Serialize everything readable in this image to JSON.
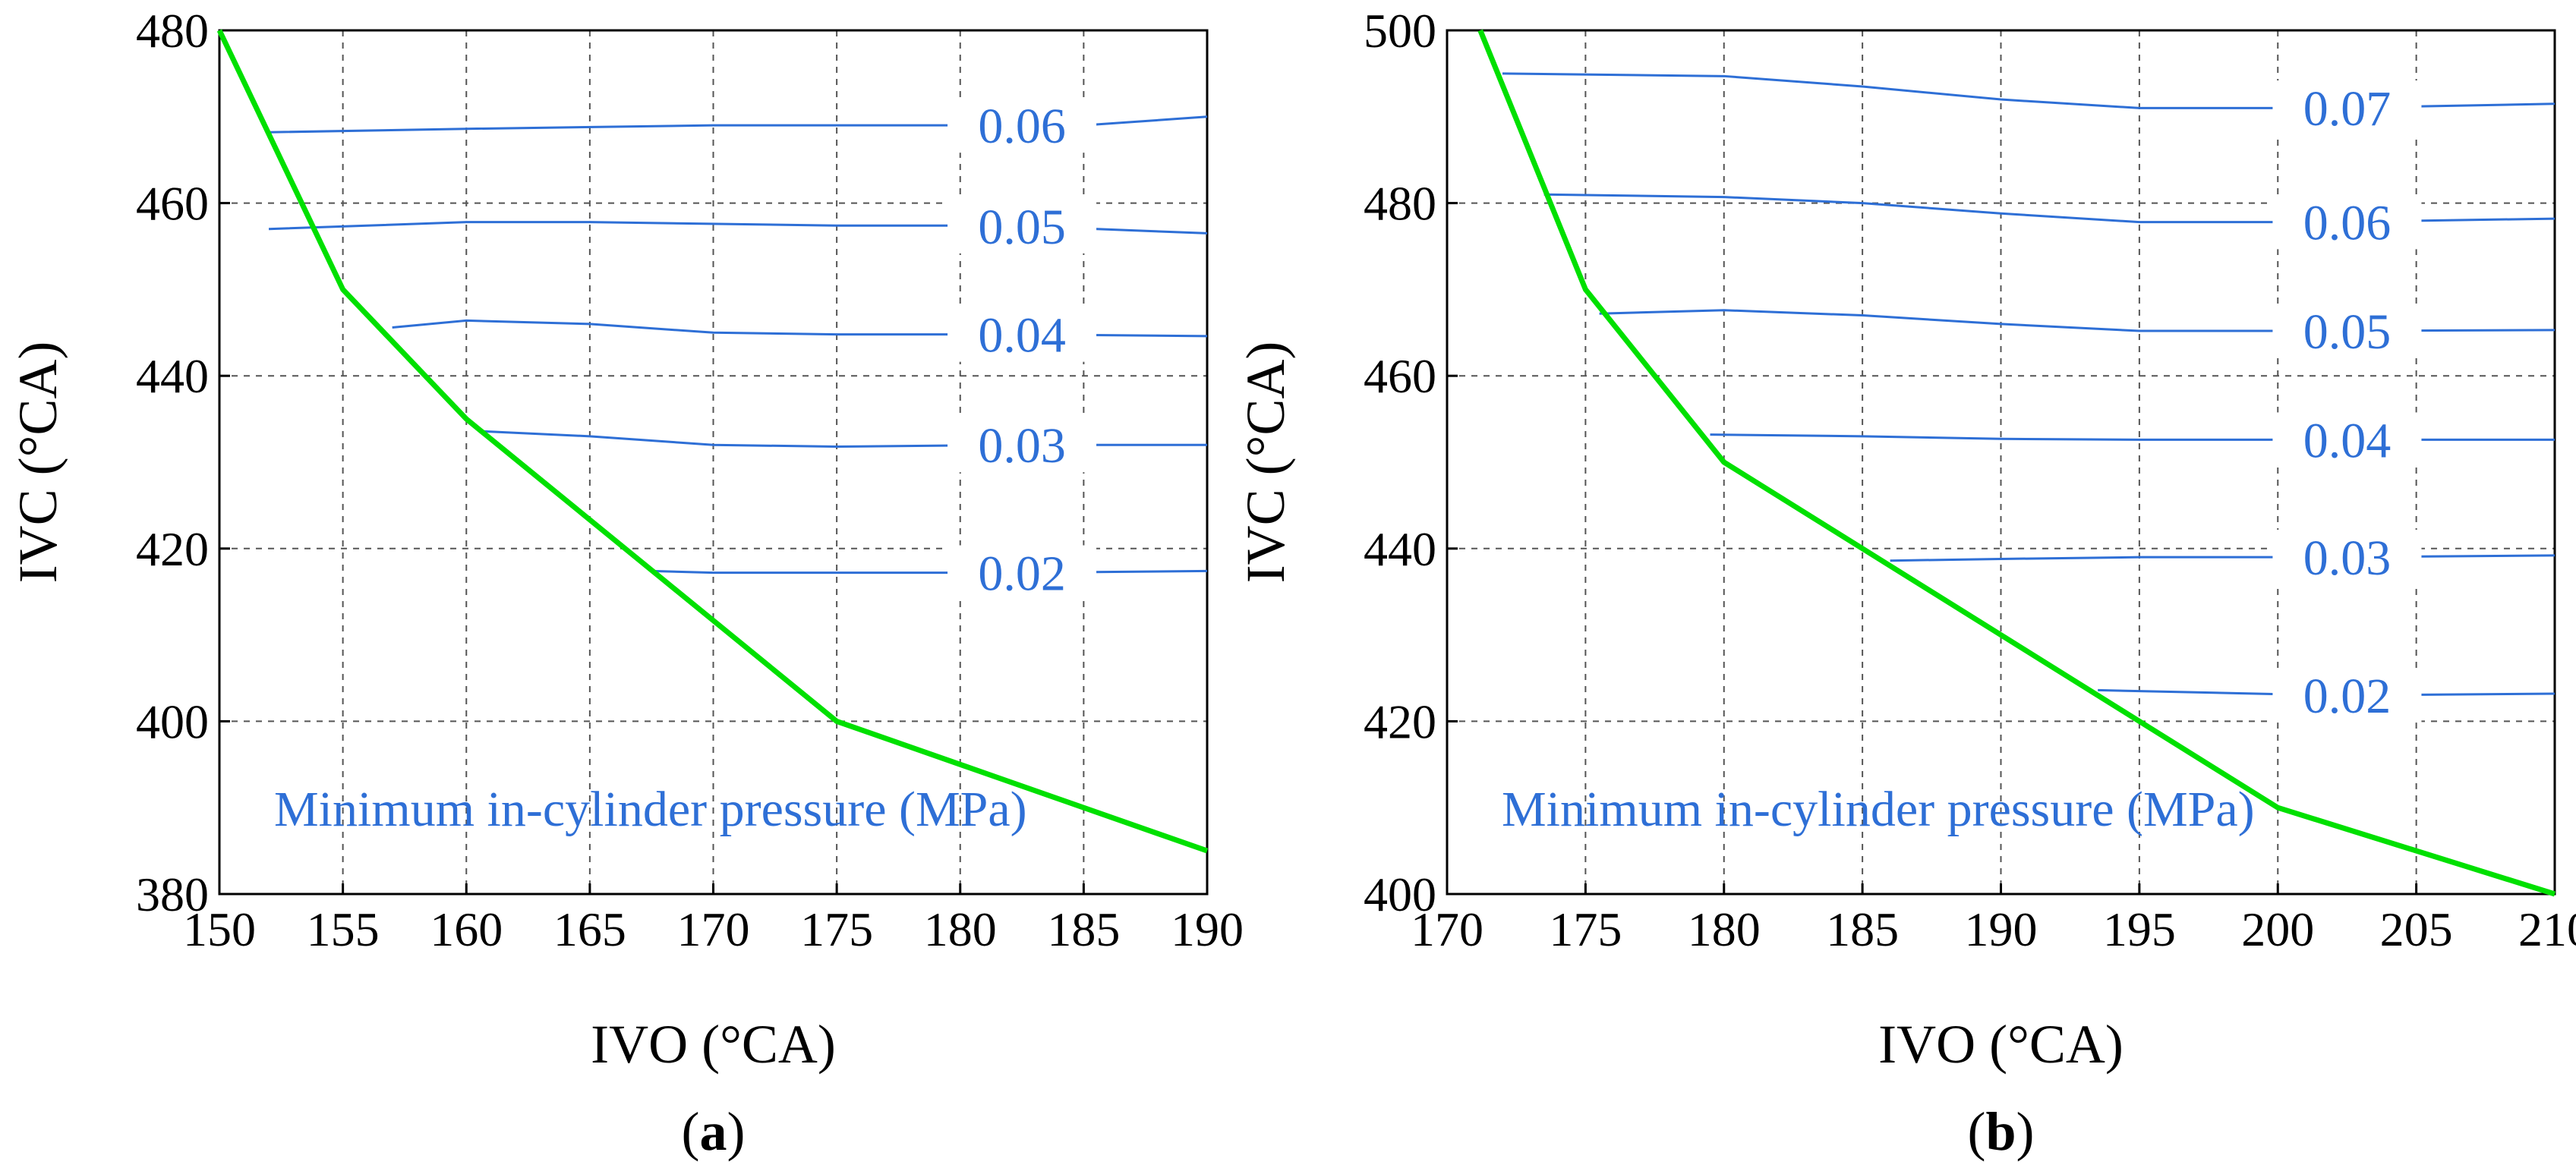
{
  "colors": {
    "contour": "#2e6fd6",
    "boundary": "#00e000",
    "grid": "#555555",
    "text": "#000000"
  },
  "chart_data": [
    {
      "type": "line",
      "panel_label": "a",
      "title": "",
      "xlabel": "IVO (°CA)",
      "ylabel": "IVC (°CA)",
      "xlim": [
        150,
        190
      ],
      "ylim": [
        380,
        480
      ],
      "xticks": [
        150,
        155,
        160,
        165,
        170,
        175,
        180,
        185,
        190
      ],
      "yticks": [
        380,
        400,
        420,
        440,
        460,
        480
      ],
      "grid": true,
      "annotation": "Minimum in-cylinder pressure (MPa)",
      "boundary": {
        "x": [
          150,
          155,
          160,
          175,
          190
        ],
        "y": [
          480,
          450,
          435,
          400,
          385
        ]
      },
      "contours": [
        {
          "level": "0.06",
          "x": [
            152,
            160,
            170,
            175,
            182,
            185,
            190
          ],
          "y": [
            468.2,
            468.6,
            469,
            469,
            469,
            469,
            470
          ],
          "label_x": 182.5
        },
        {
          "level": "0.05",
          "x": [
            152,
            160,
            165,
            175,
            182,
            190
          ],
          "y": [
            457,
            457.8,
            457.8,
            457.4,
            457.4,
            456.5
          ],
          "label_x": 182.5
        },
        {
          "level": "0.04",
          "x": [
            157,
            160,
            165,
            170,
            175,
            182,
            190
          ],
          "y": [
            445.6,
            446.4,
            446,
            445,
            444.8,
            444.8,
            444.6
          ],
          "label_x": 182.5
        },
        {
          "level": "0.03",
          "x": [
            160.5,
            165,
            170,
            175,
            182,
            190
          ],
          "y": [
            433.6,
            433,
            432,
            431.8,
            432,
            432
          ],
          "label_x": 182.5
        },
        {
          "level": "0.02",
          "x": [
            167.5,
            170,
            175,
            182,
            190
          ],
          "y": [
            417.4,
            417.2,
            417.2,
            417.2,
            417.4
          ],
          "label_x": 182.5
        }
      ]
    },
    {
      "type": "line",
      "panel_label": "b",
      "title": "",
      "xlabel": "IVO (°CA)",
      "ylabel": "IVC (°CA)",
      "xlim": [
        170,
        210
      ],
      "ylim": [
        400,
        500
      ],
      "xticks": [
        170,
        175,
        180,
        185,
        190,
        195,
        200,
        205,
        210
      ],
      "yticks": [
        400,
        420,
        440,
        460,
        480,
        500
      ],
      "grid": true,
      "annotation": "Minimum in-cylinder pressure (MPa)",
      "boundary": {
        "x": [
          171.2,
          175,
          180,
          200,
          210
        ],
        "y": [
          500,
          470,
          450,
          410,
          400
        ]
      },
      "contours": [
        {
          "level": "0.07",
          "x": [
            172,
            180,
            185,
            190,
            195,
            202,
            210
          ],
          "y": [
            495,
            494.7,
            493.5,
            492,
            491,
            491,
            491.5
          ],
          "label_x": 202.5
        },
        {
          "level": "0.06",
          "x": [
            173.5,
            180,
            185,
            190,
            195,
            202,
            210
          ],
          "y": [
            481,
            480.7,
            480,
            478.8,
            477.8,
            477.8,
            478.2
          ],
          "label_x": 202.5
        },
        {
          "level": "0.05",
          "x": [
            175.5,
            180,
            185,
            190,
            195,
            202,
            210
          ],
          "y": [
            467.2,
            467.6,
            467,
            466,
            465.2,
            465.2,
            465.3
          ],
          "label_x": 202.5
        },
        {
          "level": "0.04",
          "x": [
            179.5,
            185,
            190,
            195,
            202,
            210
          ],
          "y": [
            453.2,
            453,
            452.7,
            452.6,
            452.6,
            452.6
          ],
          "label_x": 202.5
        },
        {
          "level": "0.03",
          "x": [
            186,
            190,
            195,
            202,
            210
          ],
          "y": [
            438.6,
            438.8,
            439,
            439,
            439.2
          ],
          "label_x": 202.5
        },
        {
          "level": "0.02",
          "x": [
            193.5,
            195,
            202,
            210
          ],
          "y": [
            423.6,
            423.5,
            423,
            423.2
          ],
          "label_x": 202.5
        }
      ]
    }
  ]
}
